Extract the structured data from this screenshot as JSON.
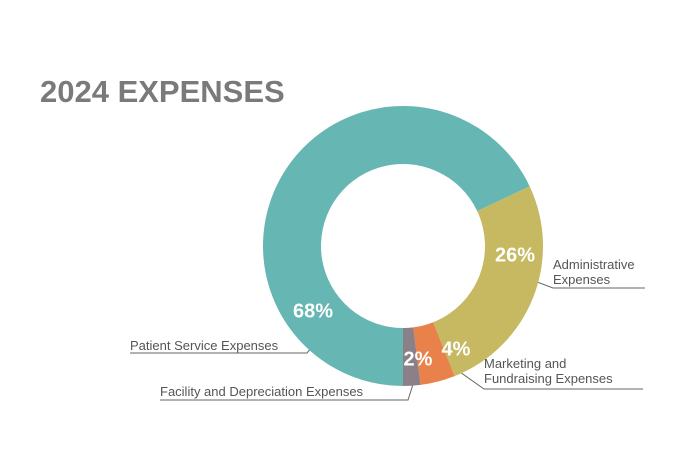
{
  "chart_data": {
    "type": "donut",
    "title": "2024 EXPENSES",
    "categories": [
      "Patient Service Expenses",
      "Administrative Expenses",
      "Marketing and Fundraising Expenses",
      "Facility and Depreciation Expenses"
    ],
    "values": [
      68,
      26,
      4,
      2
    ],
    "value_labels": [
      "68%",
      "26%",
      "4%",
      "2%"
    ],
    "colors": [
      "#66b6b3",
      "#c6b962",
      "#e8824a",
      "#8b8087"
    ]
  }
}
